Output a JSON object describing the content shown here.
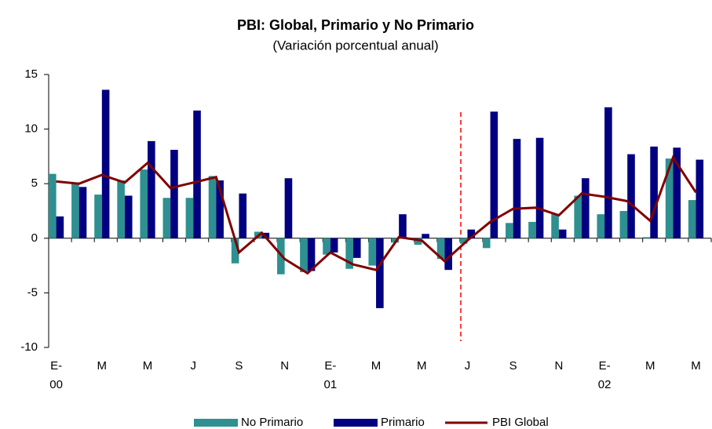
{
  "chart_data": {
    "type": "bar",
    "title": "PBI: Global, Primario y No Primario",
    "subtitle": "(Variación porcentual anual)",
    "categories": [
      [
        "E-",
        "00"
      ],
      null,
      "M",
      null,
      "M",
      null,
      "J",
      null,
      "S",
      null,
      "N",
      null,
      [
        "E-",
        "01"
      ],
      null,
      "M",
      null,
      "M",
      null,
      "J",
      null,
      "S",
      null,
      "N",
      null,
      [
        "E-",
        "02"
      ],
      null,
      "M",
      null,
      "M"
    ],
    "series": [
      {
        "name": "No Primario",
        "color": "#2e9090",
        "type": "bar",
        "values": [
          5.9,
          5.0,
          4.0,
          5.3,
          6.3,
          3.7,
          3.7,
          5.7,
          -2.3,
          0.6,
          -3.3,
          -3.1,
          -1.5,
          -2.8,
          -2.5,
          -0.4,
          -0.6,
          -1.9,
          -0.5,
          -0.9,
          1.4,
          1.5,
          2.2,
          3.9,
          2.2,
          2.5,
          0.1,
          7.3,
          3.5
        ]
      },
      {
        "name": "Primario",
        "color": "#000080",
        "type": "bar",
        "values": [
          2.0,
          4.7,
          13.6,
          3.9,
          8.9,
          8.1,
          11.7,
          5.3,
          4.1,
          0.5,
          5.5,
          -3.0,
          -1.3,
          -1.8,
          -6.4,
          2.2,
          0.4,
          -2.9,
          0.8,
          11.6,
          9.1,
          9.2,
          0.8,
          5.5,
          12.0,
          7.7,
          8.4,
          8.3,
          7.2
        ]
      },
      {
        "name": "PBI Global",
        "color": "#800000",
        "type": "line",
        "values": [
          5.2,
          5.0,
          5.8,
          5.1,
          6.9,
          4.6,
          5.1,
          5.6,
          -1.3,
          0.5,
          -1.9,
          -3.2,
          -1.3,
          -2.4,
          -2.9,
          0.1,
          -0.2,
          -2.1,
          -0.2,
          1.5,
          2.7,
          2.8,
          2.1,
          4.1,
          3.8,
          3.4,
          1.6,
          7.4,
          4.2
        ]
      }
    ],
    "ylim": [
      -10,
      15
    ],
    "yticks": [
      -10,
      -5,
      0,
      5,
      10,
      15
    ],
    "grid": false,
    "legend": "bottom"
  }
}
